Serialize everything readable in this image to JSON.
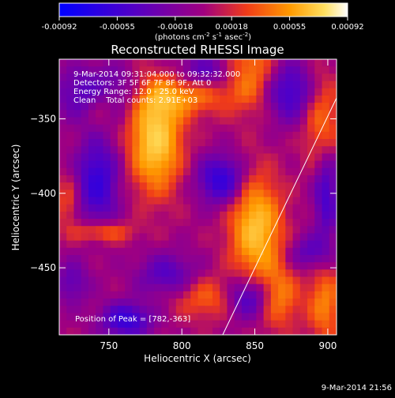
{
  "chart_data": {
    "type": "heatmap",
    "title": "Reconstructed RHESSI Image",
    "xlabel": "Heliocentric X (arcsec)",
    "ylabel": "Heliocentric Y (arcsec)",
    "xlim": [
      716,
      906
    ],
    "ylim": [
      -495,
      -310
    ],
    "x_ticks": [
      750,
      800,
      850,
      900
    ],
    "y_ticks": [
      -350,
      -400,
      -450
    ],
    "x_tick_labels": [
      "750",
      "800",
      "850",
      "900"
    ],
    "y_tick_labels": [
      "−350",
      "−400",
      "−450"
    ],
    "colorbar": {
      "range": [
        -0.00092,
        0.00092
      ],
      "ticks": [
        -0.00092,
        -0.00055,
        -0.00018,
        0.00018,
        0.00055,
        0.00092
      ],
      "tick_labels": [
        "-0.00092",
        "-0.00055",
        "-0.00018",
        "0.00018",
        "0.00055",
        "0.00092"
      ],
      "units_prefix": "(photons cm",
      "units_exp1": "-2",
      "units_mid": " s",
      "units_exp2": "-1",
      "units_mid2": " asec",
      "units_exp3": "-2",
      "units_suffix": ")"
    },
    "annotations": [
      "9-Mar-2014 09:31:04.000 to 09:32:32.000",
      "Detectors: 3F 5F 6F 7F 8F 9F, Att 0",
      "Energy Range: 12.0 - 25.0 keV",
      "Clean    Total counts: 2.91E+03"
    ],
    "peak_label": "Position of Peak = [782,-363]",
    "peak": [
      782,
      -363
    ],
    "limb_line": [
      [
        828,
        -495
      ],
      [
        906,
        -336
      ]
    ],
    "blobs": [
      {
        "x": 782,
        "y": -363,
        "sx": 12,
        "sy": 24,
        "a": 1.05
      },
      {
        "x": 800,
        "y": -335,
        "sx": 22,
        "sy": 9,
        "a": 0.55
      },
      {
        "x": 847,
        "y": -318,
        "sx": 12,
        "sy": 18,
        "a": 0.55
      },
      {
        "x": 851,
        "y": -424,
        "sx": 12,
        "sy": 24,
        "a": 0.92
      },
      {
        "x": 866,
        "y": -470,
        "sx": 10,
        "sy": 14,
        "a": 0.6
      },
      {
        "x": 898,
        "y": -474,
        "sx": 8,
        "sy": 18,
        "a": 0.55
      },
      {
        "x": 896,
        "y": -352,
        "sx": 9,
        "sy": 22,
        "a": 0.5
      },
      {
        "x": 820,
        "y": -470,
        "sx": 18,
        "sy": 10,
        "a": 0.45
      },
      {
        "x": 745,
        "y": -340,
        "sx": 8,
        "sy": 10,
        "a": 0.4
      },
      {
        "x": 745,
        "y": -426,
        "sx": 14,
        "sy": 5,
        "a": 0.5
      },
      {
        "x": 722,
        "y": -405,
        "sx": 6,
        "sy": 12,
        "a": 0.35
      },
      {
        "x": 742,
        "y": -333,
        "sx": 20,
        "sy": 12,
        "a": -0.6
      },
      {
        "x": 742,
        "y": -392,
        "sx": 10,
        "sy": 20,
        "a": -0.75
      },
      {
        "x": 827,
        "y": -391,
        "sx": 11,
        "sy": 11,
        "a": -0.8
      },
      {
        "x": 874,
        "y": -332,
        "sx": 12,
        "sy": 14,
        "a": -0.65
      },
      {
        "x": 899,
        "y": -400,
        "sx": 6,
        "sy": 22,
        "a": -0.6
      },
      {
        "x": 846,
        "y": -470,
        "sx": 12,
        "sy": 10,
        "a": -0.8
      },
      {
        "x": 762,
        "y": -485,
        "sx": 12,
        "sy": 8,
        "a": -0.75
      },
      {
        "x": 790,
        "y": -455,
        "sx": 14,
        "sy": 10,
        "a": -0.5
      },
      {
        "x": 725,
        "y": -460,
        "sx": 8,
        "sy": 10,
        "a": -0.4
      },
      {
        "x": 816,
        "y": -318,
        "sx": 14,
        "sy": 8,
        "a": -0.45
      },
      {
        "x": 888,
        "y": -440,
        "sx": 10,
        "sy": 8,
        "a": -0.45
      }
    ]
  },
  "footer": {
    "timestamp": "9-Mar-2014 21:56"
  }
}
